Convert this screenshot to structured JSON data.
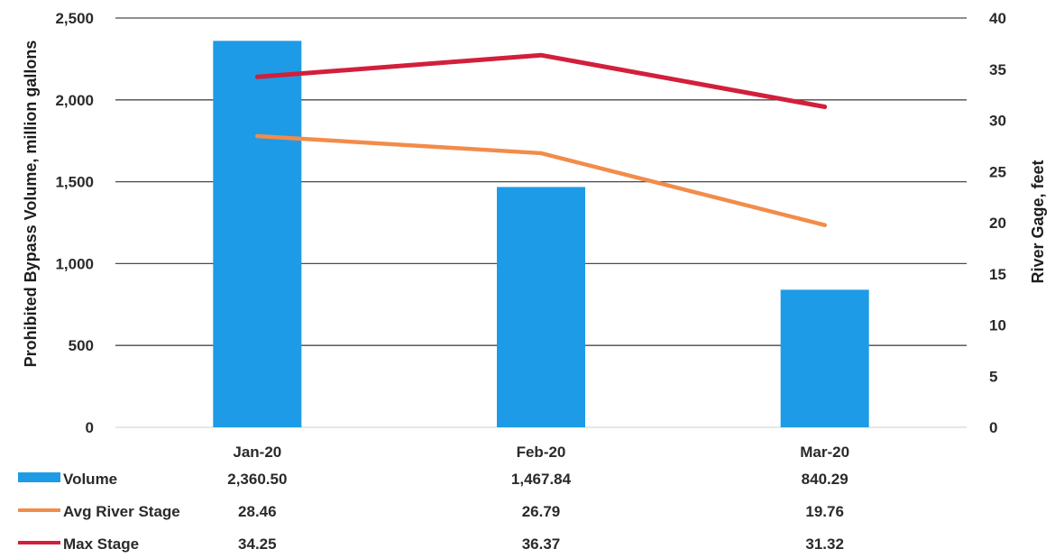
{
  "chart_data": {
    "type": "bar",
    "categories": [
      "Jan-20",
      "Feb-20",
      "Mar-20"
    ],
    "series": [
      {
        "name": "Volume",
        "type": "bar",
        "axis": "left",
        "color": "#1e9be6",
        "values": [
          2360.5,
          1467.84,
          840.29
        ],
        "labels": [
          "2,360.50",
          "1,467.84",
          "840.29"
        ]
      },
      {
        "name": "Avg River Stage",
        "type": "line",
        "axis": "right",
        "color": "#f28c4a",
        "values": [
          28.46,
          26.79,
          19.76
        ],
        "labels": [
          "28.46",
          "26.79",
          "19.76"
        ]
      },
      {
        "name": "Max Stage",
        "type": "line",
        "axis": "right",
        "color": "#d21f3c",
        "values": [
          34.25,
          36.37,
          31.32
        ],
        "labels": [
          "34.25",
          "36.37",
          "31.32"
        ]
      }
    ],
    "ylabel": "Prohibited Bypass  Volume, million gallons",
    "y2label": "River Gage, feet",
    "ylim": [
      0,
      2500
    ],
    "y2lim": [
      0,
      40
    ],
    "yticks": [
      "0",
      "500",
      "1,000",
      "1,500",
      "2,000",
      "2,500"
    ],
    "y2ticks": [
      "0",
      "5",
      "10",
      "15",
      "20",
      "25",
      "30",
      "35",
      "40"
    ],
    "grid": true,
    "legend": "data-table-below"
  }
}
